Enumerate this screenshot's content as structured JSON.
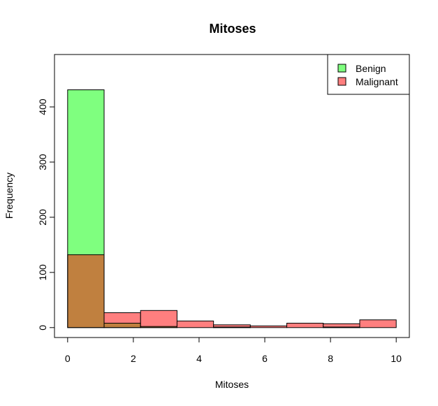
{
  "chart_data": {
    "type": "bar",
    "title": "Mitoses",
    "xlabel": "Mitoses",
    "ylabel": "Frequency",
    "xlim": [
      -0.4,
      10.4
    ],
    "ylim": [
      -18,
      495
    ],
    "x_ticks": [
      0,
      2,
      4,
      6,
      8,
      10
    ],
    "y_ticks": [
      0,
      100,
      200,
      300,
      400
    ],
    "bin_edges": [
      0,
      1.11,
      2.22,
      3.33,
      4.44,
      5.56,
      6.67,
      7.78,
      8.89,
      10
    ],
    "series": [
      {
        "name": "Benign",
        "color": "#7fff7f",
        "values": [
          431,
          8,
          2,
          0,
          1,
          0,
          0,
          1,
          0
        ]
      },
      {
        "name": "Malignant",
        "color": "#ff7f7f",
        "values": [
          132,
          27,
          31,
          12,
          5,
          3,
          8,
          7,
          14
        ]
      }
    ],
    "overlap_color": "#c0803f",
    "legend_position": "top-right",
    "grid": false
  }
}
